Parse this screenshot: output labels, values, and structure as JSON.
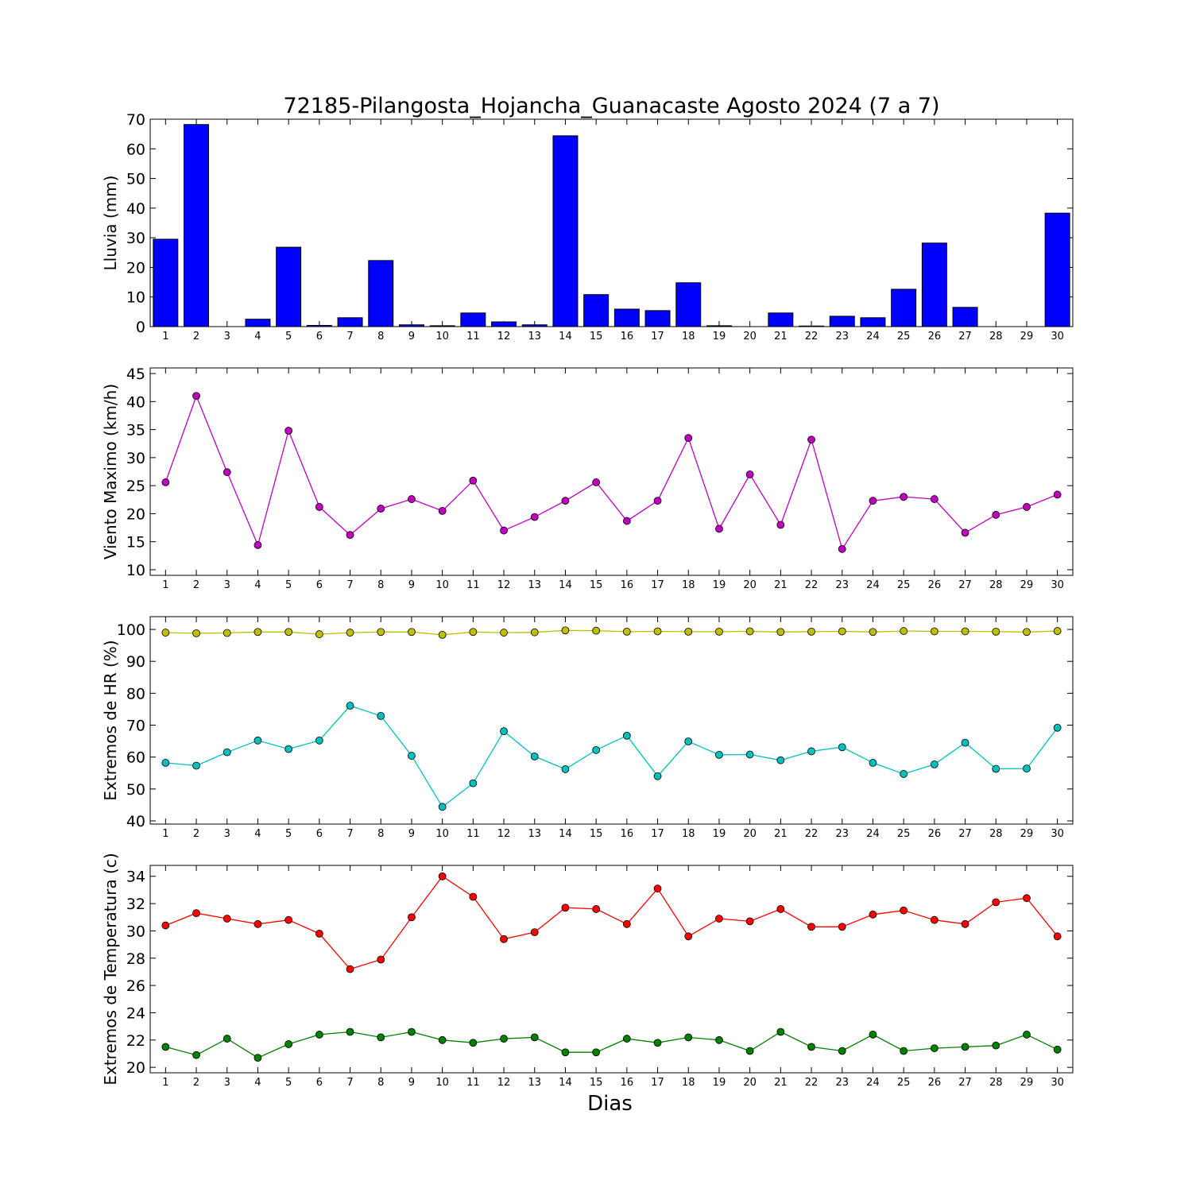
{
  "chart_data": [
    {
      "type": "bar",
      "title": "72185-Pilangosta_Hojancha_Guanacaste Agosto 2024  (7 a 7)",
      "ylabel": "Lluvia (mm)",
      "xlabel": "",
      "categories": [
        "1",
        "2",
        "3",
        "4",
        "5",
        "6",
        "7",
        "8",
        "9",
        "10",
        "11",
        "12",
        "13",
        "14",
        "15",
        "16",
        "17",
        "18",
        "19",
        "20",
        "21",
        "22",
        "23",
        "24",
        "25",
        "26",
        "27",
        "28",
        "29",
        "30"
      ],
      "ylim": [
        0,
        70
      ],
      "yticks": [
        "0",
        "10",
        "20",
        "30",
        "40",
        "50",
        "60",
        "70"
      ],
      "series": [
        {
          "color": "#0000ff",
          "values": [
            29.5,
            68.2,
            0,
            2.5,
            26.8,
            0.4,
            3.0,
            22.3,
            0.6,
            0.3,
            4.6,
            1.6,
            0.6,
            64.4,
            10.8,
            5.9,
            5.4,
            14.8,
            0.3,
            0,
            4.6,
            0.2,
            3.5,
            3.0,
            12.6,
            28.2,
            6.5,
            0,
            0,
            38.3
          ]
        }
      ]
    },
    {
      "type": "line",
      "ylabel": "Viento Maximo (km/h)",
      "xlabel": "",
      "categories": [
        "1",
        "2",
        "3",
        "4",
        "5",
        "6",
        "7",
        "8",
        "9",
        "10",
        "11",
        "12",
        "13",
        "14",
        "15",
        "16",
        "17",
        "18",
        "19",
        "20",
        "21",
        "22",
        "23",
        "24",
        "25",
        "26",
        "27",
        "28",
        "29",
        "30"
      ],
      "ylim": [
        9,
        46
      ],
      "yticks": [
        "10",
        "15",
        "20",
        "25",
        "30",
        "35",
        "40",
        "45"
      ],
      "series": [
        {
          "color": "#bf00bf",
          "values": [
            25.6,
            41.0,
            27.4,
            14.4,
            34.8,
            21.2,
            16.2,
            20.9,
            22.6,
            20.5,
            25.9,
            17.0,
            19.4,
            22.3,
            25.6,
            18.7,
            22.3,
            33.5,
            17.3,
            27.0,
            18.0,
            33.2,
            13.7,
            22.3,
            23.0,
            22.6,
            16.6,
            19.8,
            21.2,
            23.4
          ]
        }
      ]
    },
    {
      "type": "line",
      "ylabel": "Extremos de HR (%)",
      "xlabel": "",
      "categories": [
        "1",
        "2",
        "3",
        "4",
        "5",
        "6",
        "7",
        "8",
        "9",
        "10",
        "11",
        "12",
        "13",
        "14",
        "15",
        "16",
        "17",
        "18",
        "19",
        "20",
        "21",
        "22",
        "23",
        "24",
        "25",
        "26",
        "27",
        "28",
        "29",
        "30"
      ],
      "ylim": [
        39,
        104
      ],
      "yticks": [
        "40",
        "50",
        "60",
        "70",
        "80",
        "90",
        "100"
      ],
      "series": [
        {
          "color": "#bfbf00",
          "values": [
            99.0,
            98.8,
            98.9,
            99.2,
            99.2,
            98.5,
            99.0,
            99.2,
            99.2,
            98.3,
            99.2,
            99.0,
            99.1,
            99.7,
            99.6,
            99.3,
            99.4,
            99.3,
            99.3,
            99.4,
            99.2,
            99.3,
            99.4,
            99.2,
            99.5,
            99.4,
            99.4,
            99.3,
            99.2,
            99.5
          ]
        },
        {
          "color": "#00bfbf",
          "values": [
            58.2,
            57.3,
            61.5,
            65.2,
            62.5,
            65.2,
            76.1,
            72.9,
            60.4,
            44.4,
            51.8,
            68.1,
            60.2,
            56.2,
            62.2,
            66.7,
            54.0,
            64.9,
            60.7,
            60.8,
            59.0,
            61.8,
            63.1,
            58.2,
            54.7,
            57.7,
            64.5,
            56.3,
            56.4,
            69.2
          ]
        }
      ]
    },
    {
      "type": "line",
      "ylabel": "Extremos de Temperatura (c)",
      "xlabel": "Dias",
      "categories": [
        "1",
        "2",
        "3",
        "4",
        "5",
        "6",
        "7",
        "8",
        "9",
        "10",
        "11",
        "12",
        "13",
        "14",
        "15",
        "16",
        "17",
        "18",
        "19",
        "20",
        "21",
        "22",
        "23",
        "24",
        "25",
        "26",
        "27",
        "28",
        "29",
        "30"
      ],
      "ylim": [
        19.6,
        34.8
      ],
      "yticks": [
        "20",
        "22",
        "24",
        "26",
        "28",
        "30",
        "32",
        "34"
      ],
      "series": [
        {
          "color": "#ff0000",
          "values": [
            30.4,
            31.3,
            30.9,
            30.5,
            30.8,
            29.8,
            27.2,
            27.9,
            31.0,
            34.0,
            32.5,
            29.4,
            29.9,
            31.7,
            31.6,
            30.5,
            33.1,
            29.6,
            30.9,
            30.7,
            31.6,
            30.3,
            30.3,
            31.2,
            31.5,
            30.8,
            30.5,
            32.1,
            32.4,
            29.6
          ]
        },
        {
          "color": "#008000",
          "values": [
            21.5,
            20.9,
            22.1,
            20.7,
            21.7,
            22.4,
            22.6,
            22.2,
            22.6,
            22.0,
            21.8,
            22.1,
            22.2,
            21.1,
            21.1,
            22.1,
            21.8,
            22.2,
            22.0,
            21.2,
            22.6,
            21.5,
            21.2,
            22.4,
            21.2,
            21.4,
            21.5,
            21.6,
            22.4,
            21.3
          ]
        }
      ]
    }
  ]
}
